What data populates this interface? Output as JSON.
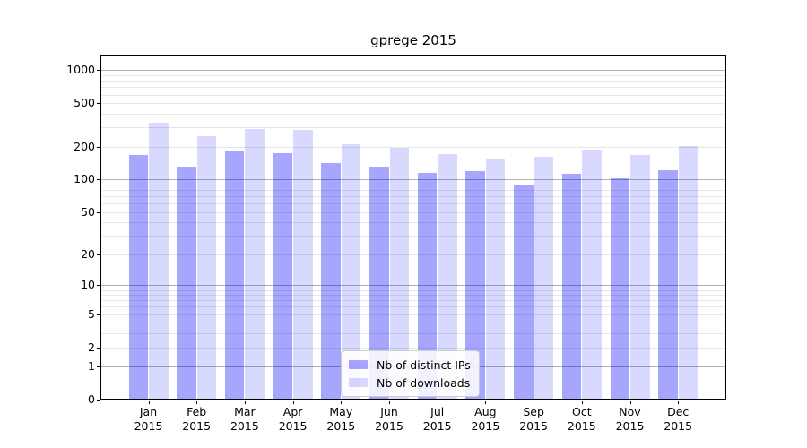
{
  "chart_data": {
    "type": "bar",
    "title": "gprege 2015",
    "categories": [
      "Jan",
      "Feb",
      "Mar",
      "Apr",
      "May",
      "Jun",
      "Jul",
      "Aug",
      "Sep",
      "Oct",
      "Nov",
      "Dec"
    ],
    "x_year": "2015",
    "series": [
      {
        "name": "Nb of distinct IPs",
        "color": "rgba(0,0,255,0.35)",
        "values": [
          168,
          131,
          183,
          174,
          141,
          131,
          115,
          119,
          88,
          112,
          103,
          122
        ]
      },
      {
        "name": "Nb of downloads",
        "color": "rgba(0,0,255,0.15)",
        "values": [
          330,
          250,
          290,
          288,
          211,
          197,
          173,
          156,
          162,
          188,
          169,
          203
        ]
      }
    ],
    "yscale": "log10(1+y)",
    "ylim": [
      0,
      1390
    ],
    "yticks": [
      0,
      1,
      2,
      5,
      10,
      20,
      50,
      100,
      200,
      500,
      1000
    ],
    "grid_major": [
      1,
      10,
      100,
      1000
    ],
    "grid_minor": [
      2,
      3,
      4,
      5,
      6,
      7,
      8,
      9,
      20,
      30,
      40,
      50,
      60,
      70,
      80,
      90,
      200,
      300,
      400,
      500,
      600,
      700,
      800,
      900
    ],
    "grid": true,
    "legend": {
      "position": "lower center",
      "labels": [
        "Nb of distinct IPs",
        "Nb of downloads"
      ]
    },
    "colors": {
      "grid_major": "#b0b0b0",
      "grid_minor": "#e7e7e7",
      "spine": "#000000",
      "text": "#000000",
      "background": "#ffffff"
    }
  }
}
